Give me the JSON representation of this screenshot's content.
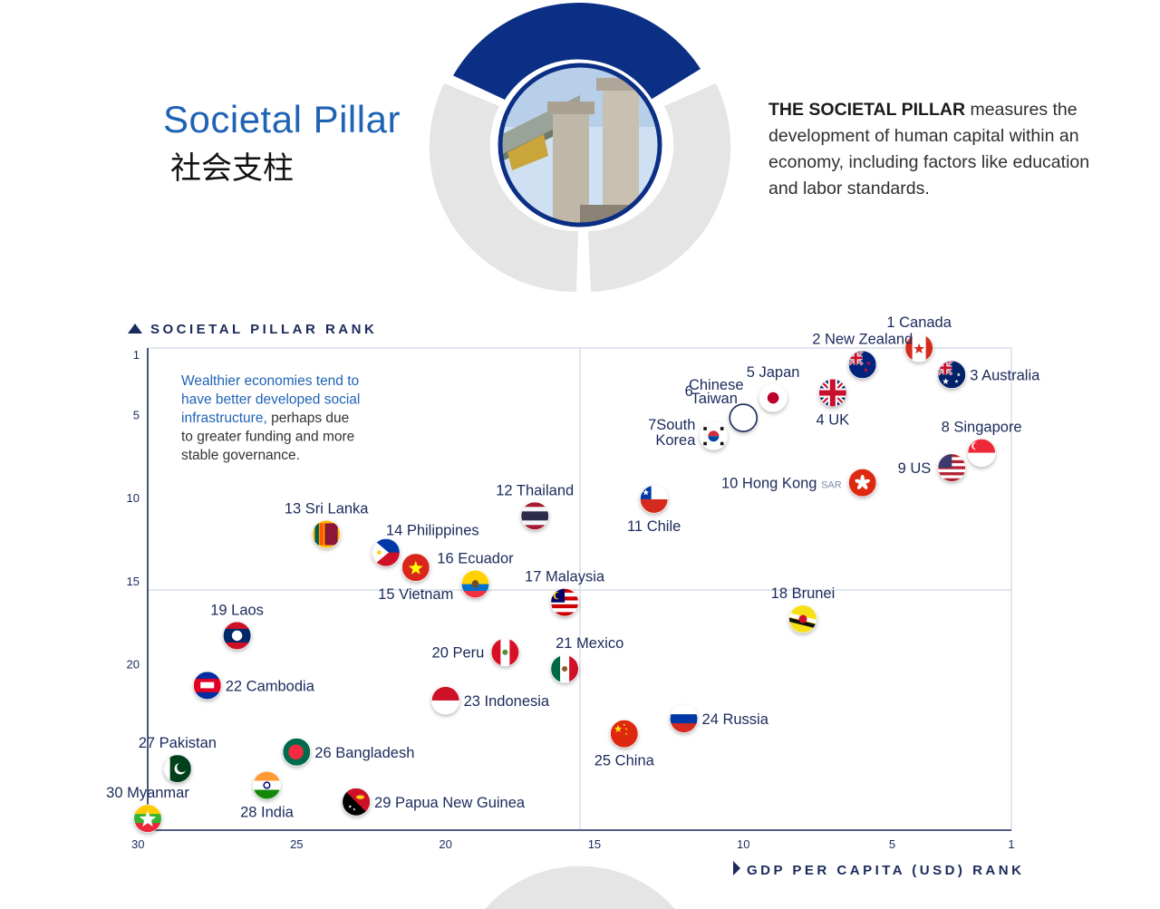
{
  "header": {
    "title": "Societal Pillar",
    "subtitle_zh": "社会支柱",
    "description_bold": "THE SOCIETAL PILLAR",
    "description_rest": " measures the development of human capital within an economy, including factors like education and labor standards."
  },
  "colors": {
    "navy": "#1b2a5b",
    "accent": "#1f63b5",
    "grid": "#cfd6e4",
    "ring_grey": "#e5e5e5",
    "ring_active": "#0c2f86"
  },
  "chart_data": {
    "type": "scatter",
    "xlabel": "GDP PER CAPITA (USD) RANK",
    "ylabel": "SOCIETAL PILLAR RANK",
    "xlim": [
      30,
      1
    ],
    "ylim": [
      1,
      30
    ],
    "x_ticks": [
      "30",
      "25",
      "20",
      "15",
      "10",
      "5",
      "1"
    ],
    "y_ticks": [
      "1",
      "5",
      "10",
      "15",
      "20"
    ],
    "annotation_blue": [
      "Wealthier economies tend to",
      "have better developed social",
      "infrastructure,"
    ],
    "annotation_dark": [
      "perhaps due",
      "to greater funding and more",
      "stable governance."
    ],
    "points": [
      {
        "rank": 1,
        "name": "Canada",
        "x": 4.1,
        "y": 1.0,
        "flag": "canada-flag-icon",
        "pos": "above"
      },
      {
        "rank": 2,
        "name": "New Zealand",
        "x": 6.0,
        "y": 2.0,
        "flag": "new-zealand-flag-icon",
        "pos": "above"
      },
      {
        "rank": 3,
        "name": "Australia",
        "x": 3.0,
        "y": 2.6,
        "flag": "australia-flag-icon",
        "pos": "right"
      },
      {
        "rank": 4,
        "name": "UK",
        "x": 7.0,
        "y": 3.7,
        "flag": "uk-flag-icon",
        "pos": "below"
      },
      {
        "rank": 5,
        "name": "Japan",
        "x": 9.0,
        "y": 4.0,
        "flag": "japan-flag-icon",
        "pos": "above"
      },
      {
        "rank": 6,
        "name": "Chinese Taiwan",
        "x": 10.0,
        "y": 5.2,
        "flag": "empty-circle-icon",
        "pos": "custom"
      },
      {
        "rank": 7,
        "name": "South Korea",
        "x": 11.0,
        "y": 6.3,
        "flag": "south-korea-flag-icon",
        "pos": "custom"
      },
      {
        "rank": 8,
        "name": "Singapore",
        "x": 2.0,
        "y": 7.3,
        "flag": "singapore-flag-icon",
        "pos": "above"
      },
      {
        "rank": 9,
        "name": "US",
        "x": 3.0,
        "y": 8.2,
        "flag": "us-flag-icon",
        "pos": "left"
      },
      {
        "rank": 10,
        "name": "Hong Kong",
        "suffix": "SAR",
        "x": 6.0,
        "y": 9.1,
        "flag": "hong-kong-flag-icon",
        "pos": "left"
      },
      {
        "rank": 11,
        "name": "Chile",
        "x": 13.0,
        "y": 10.1,
        "flag": "chile-flag-icon",
        "pos": "below"
      },
      {
        "rank": 12,
        "name": "Thailand",
        "x": 17.0,
        "y": 11.1,
        "flag": "thailand-flag-icon",
        "pos": "above"
      },
      {
        "rank": 13,
        "name": "Sri Lanka",
        "x": 24.0,
        "y": 12.2,
        "flag": "sri-lanka-flag-icon",
        "pos": "above"
      },
      {
        "rank": 14,
        "name": "Philippines",
        "x": 22.0,
        "y": 13.3,
        "flag": "philippines-flag-icon",
        "pos": "custom"
      },
      {
        "rank": 15,
        "name": "Vietnam",
        "x": 21.0,
        "y": 14.2,
        "flag": "vietnam-flag-icon",
        "pos": "below"
      },
      {
        "rank": 16,
        "name": "Ecuador",
        "x": 19.0,
        "y": 15.2,
        "flag": "ecuador-flag-icon",
        "pos": "above"
      },
      {
        "rank": 17,
        "name": "Malaysia",
        "x": 16.0,
        "y": 16.3,
        "flag": "malaysia-flag-icon",
        "pos": "above"
      },
      {
        "rank": 18,
        "name": "Brunei",
        "x": 8.0,
        "y": 17.3,
        "flag": "brunei-flag-icon",
        "pos": "above"
      },
      {
        "rank": 19,
        "name": "Laos",
        "x": 27.0,
        "y": 18.3,
        "flag": "laos-flag-icon",
        "pos": "above"
      },
      {
        "rank": 20,
        "name": "Peru",
        "x": 18.0,
        "y": 19.3,
        "flag": "peru-flag-icon",
        "pos": "left"
      },
      {
        "rank": 21,
        "name": "Mexico",
        "x": 16.0,
        "y": 20.3,
        "flag": "mexico-flag-icon",
        "pos": "custom"
      },
      {
        "rank": 22,
        "name": "Cambodia",
        "x": 28.0,
        "y": 21.3,
        "flag": "cambodia-flag-icon",
        "pos": "right"
      },
      {
        "rank": 23,
        "name": "Indonesia",
        "x": 20.0,
        "y": 22.2,
        "flag": "indonesia-flag-icon",
        "pos": "right"
      },
      {
        "rank": 24,
        "name": "Russia",
        "x": 12.0,
        "y": 23.3,
        "flag": "russia-flag-icon",
        "pos": "right"
      },
      {
        "rank": 25,
        "name": "China",
        "x": 14.0,
        "y": 24.2,
        "flag": "china-flag-icon",
        "pos": "below"
      },
      {
        "rank": 26,
        "name": "Bangladesh",
        "x": 25.0,
        "y": 25.3,
        "flag": "bangladesh-flag-icon",
        "pos": "right"
      },
      {
        "rank": 27,
        "name": "Pakistan",
        "x": 29.0,
        "y": 26.3,
        "flag": "pakistan-flag-icon",
        "pos": "above"
      },
      {
        "rank": 28,
        "name": "India",
        "x": 26.0,
        "y": 27.3,
        "flag": "india-flag-icon",
        "pos": "below"
      },
      {
        "rank": 29,
        "name": "Papua New Guinea",
        "x": 23.0,
        "y": 28.3,
        "flag": "papua-new-guinea-flag-icon",
        "pos": "right"
      },
      {
        "rank": 30,
        "name": "Myanmar",
        "x": 30.0,
        "y": 29.3,
        "flag": "myanmar-flag-icon",
        "pos": "above"
      }
    ]
  }
}
